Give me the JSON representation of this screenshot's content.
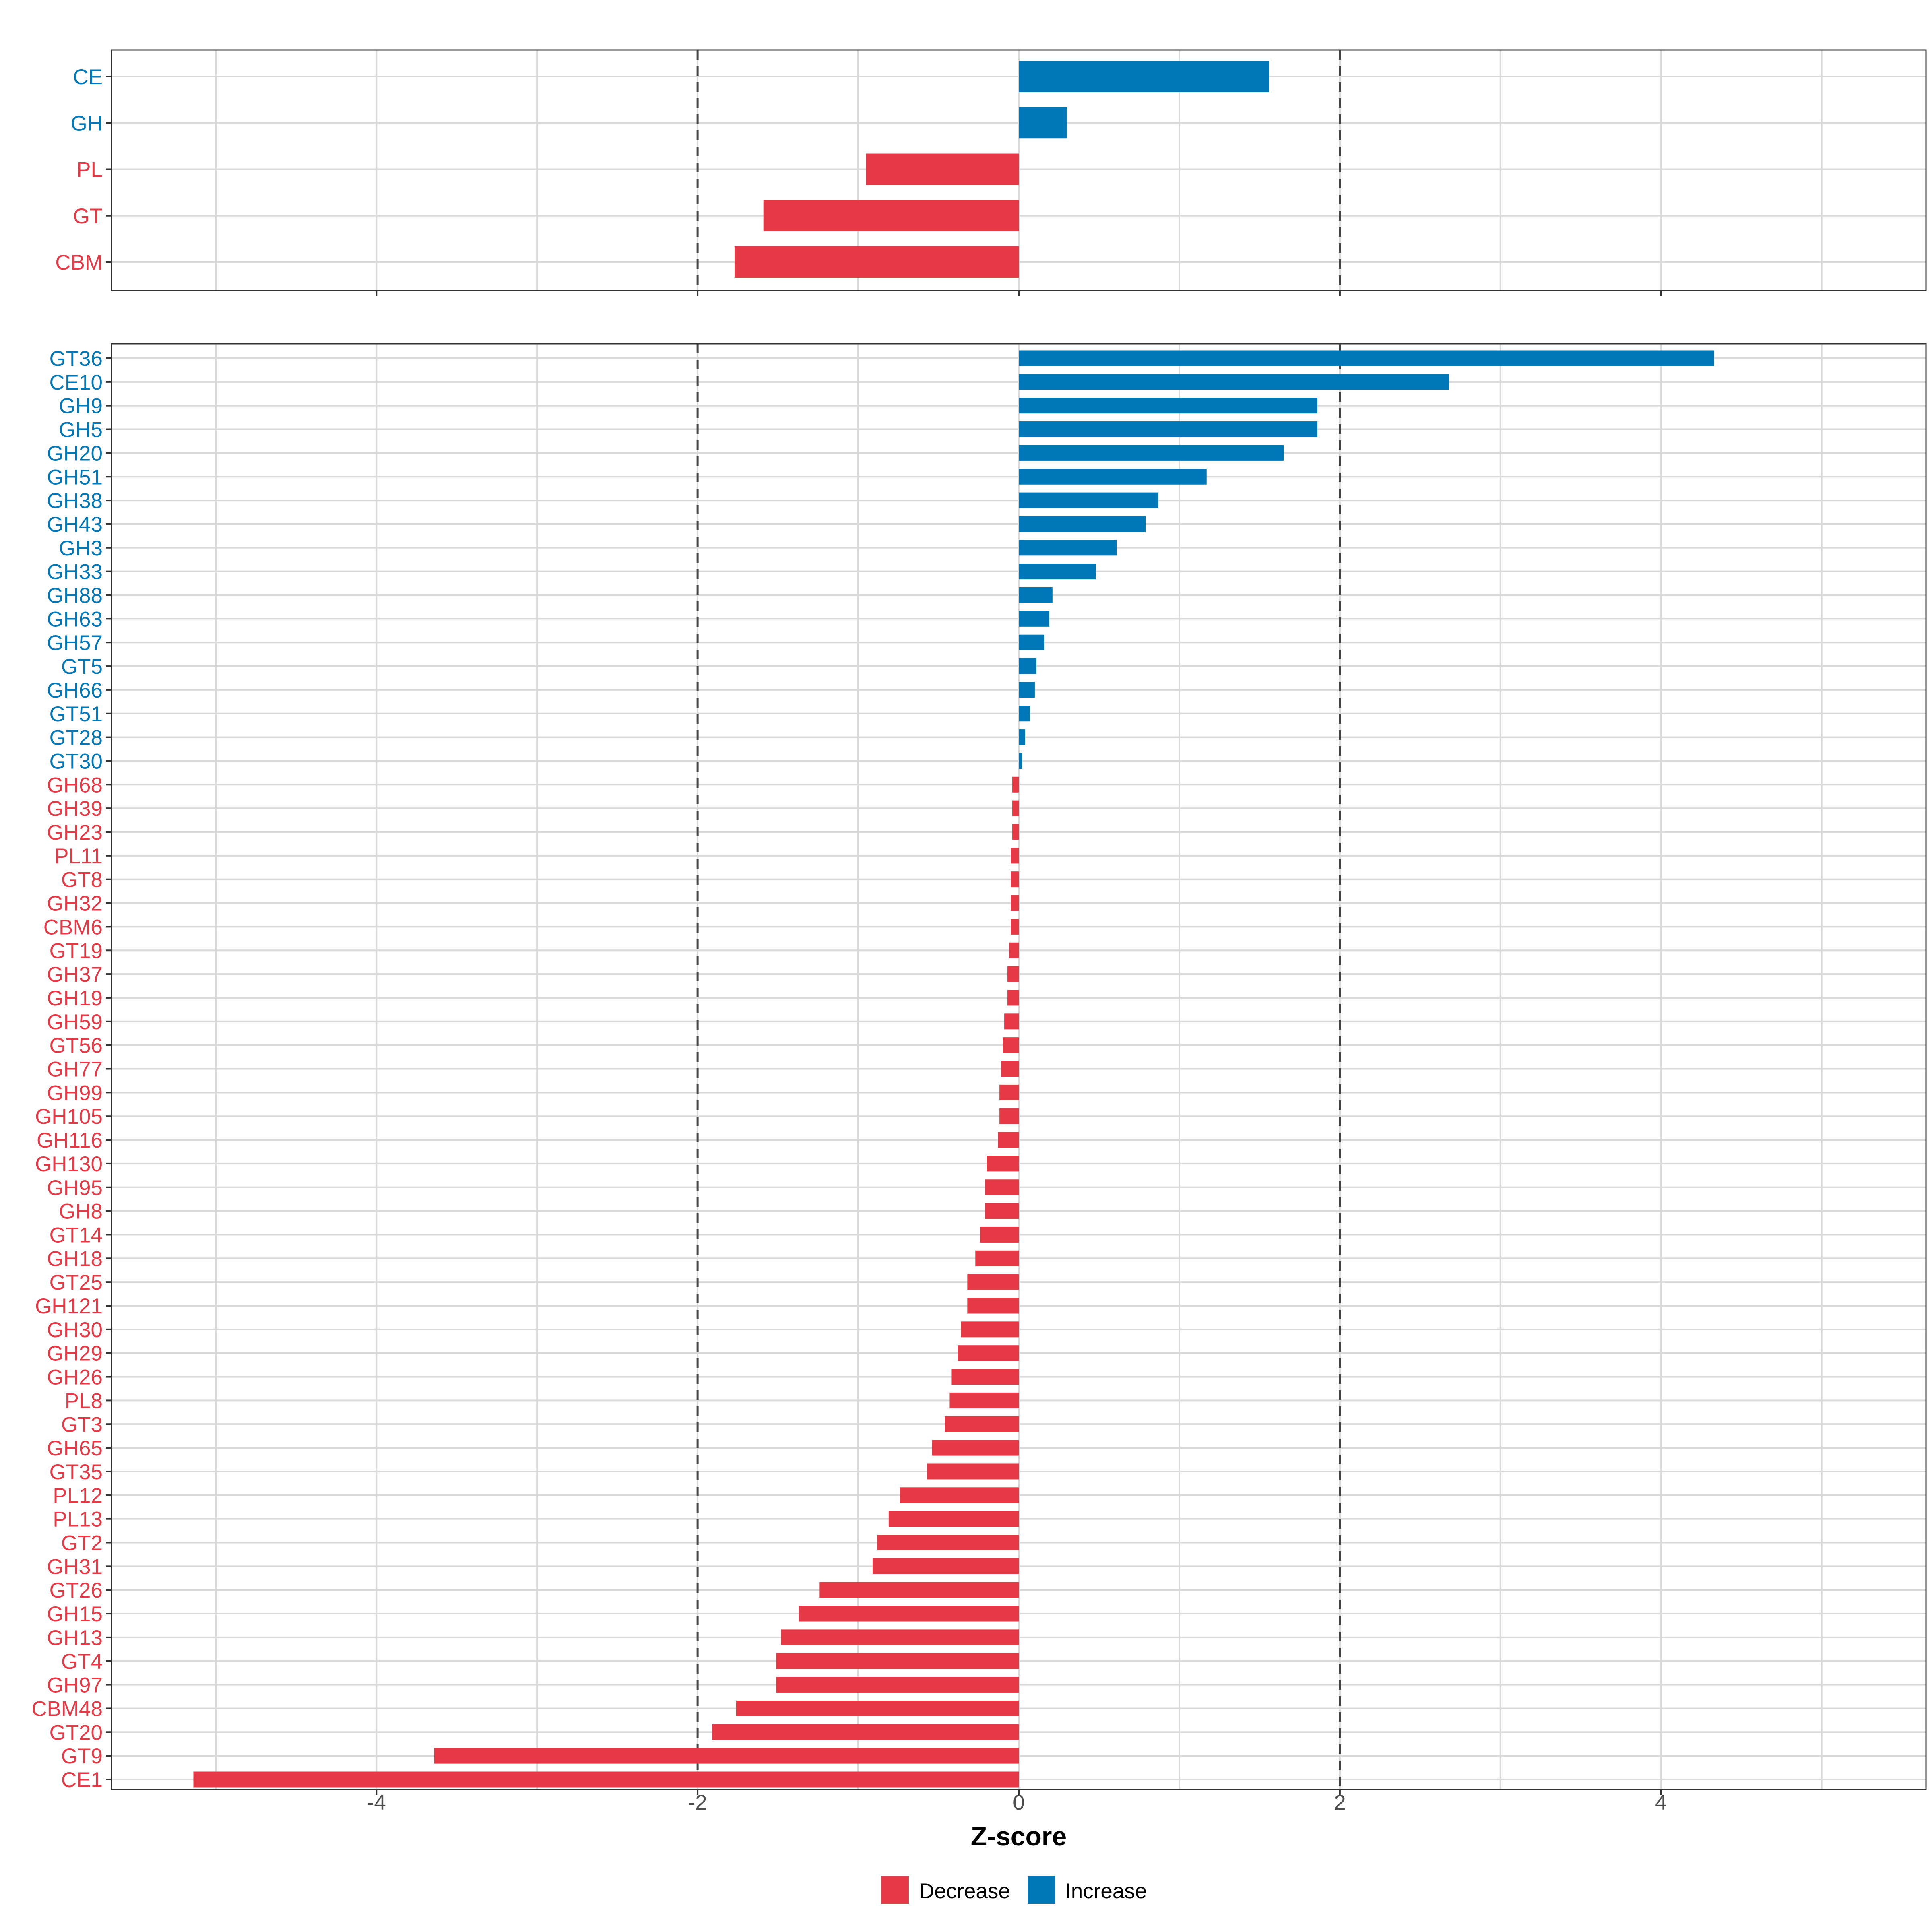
{
  "chart_data": {
    "type": "bar",
    "orientation": "horizontal",
    "xlabel": "Z-score",
    "xlim": [
      -5.65,
      5.65
    ],
    "xticks": [
      -4,
      -2,
      0,
      2,
      4
    ],
    "xtick_labels": [
      "-4",
      "-2",
      "0",
      "2",
      "4"
    ],
    "reference_lines": [
      -2,
      2
    ],
    "grid": true,
    "colors": {
      "Decrease": "#E63946",
      "Increase": "#0077B6"
    },
    "legend": {
      "position": "bottom",
      "entries": [
        {
          "label": "Decrease",
          "color": "#E63946"
        },
        {
          "label": "Increase",
          "color": "#0077B6"
        }
      ]
    },
    "panels": [
      {
        "name": "class",
        "categories": [
          "CE",
          "GH",
          "PL",
          "GT",
          "CBM"
        ],
        "values": [
          1.56,
          0.3,
          -0.95,
          -1.59,
          -1.77
        ]
      },
      {
        "name": "family",
        "categories": [
          "GT36",
          "CE10",
          "GH9",
          "GH5",
          "GH20",
          "GH51",
          "GH38",
          "GH43",
          "GH3",
          "GH33",
          "GH88",
          "GH63",
          "GH57",
          "GT5",
          "GH66",
          "GT51",
          "GT28",
          "GT30",
          "GH68",
          "GH39",
          "GH23",
          "PL11",
          "GT8",
          "GH32",
          "CBM6",
          "GT19",
          "GH37",
          "GH19",
          "GH59",
          "GT56",
          "GH77",
          "GH99",
          "GH105",
          "GH116",
          "GH130",
          "GH95",
          "GH8",
          "GT14",
          "GH18",
          "GT25",
          "GH121",
          "GH30",
          "GH29",
          "GH26",
          "PL8",
          "GT3",
          "GH65",
          "GT35",
          "PL12",
          "PL13",
          "GT2",
          "GH31",
          "GT26",
          "GH15",
          "GH13",
          "GT4",
          "GH97",
          "CBM48",
          "GT20",
          "GT9",
          "CE1"
        ],
        "values": [
          4.33,
          2.68,
          1.86,
          1.86,
          1.65,
          1.17,
          0.87,
          0.79,
          0.61,
          0.48,
          0.21,
          0.19,
          0.16,
          0.11,
          0.1,
          0.07,
          0.04,
          0.02,
          -0.04,
          -0.04,
          -0.04,
          -0.05,
          -0.05,
          -0.05,
          -0.05,
          -0.06,
          -0.07,
          -0.07,
          -0.09,
          -0.1,
          -0.11,
          -0.12,
          -0.12,
          -0.13,
          -0.2,
          -0.21,
          -0.21,
          -0.24,
          -0.27,
          -0.32,
          -0.32,
          -0.36,
          -0.38,
          -0.42,
          -0.43,
          -0.46,
          -0.54,
          -0.57,
          -0.74,
          -0.81,
          -0.88,
          -0.91,
          -1.24,
          -1.37,
          -1.48,
          -1.51,
          -1.51,
          -1.76,
          -1.91,
          -3.64,
          -5.14
        ]
      }
    ]
  }
}
